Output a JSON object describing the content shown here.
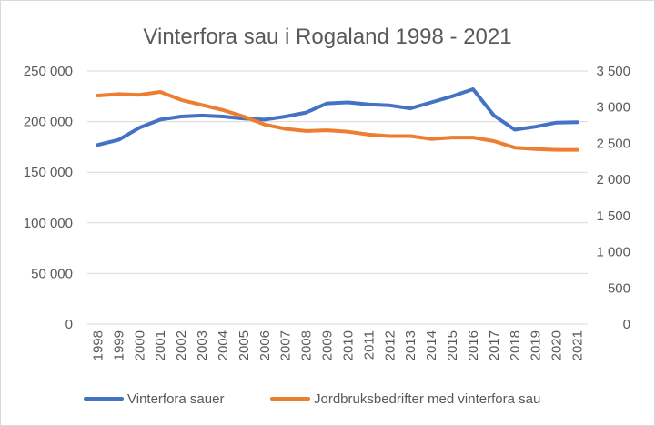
{
  "chart_data": {
    "type": "line",
    "title": "Vinterfora sau i Rogaland 1998 - 2021",
    "categories": [
      "1998",
      "1999",
      "2000",
      "2001",
      "2002",
      "2003",
      "2004",
      "2005",
      "2006",
      "2007",
      "2008",
      "2009",
      "2010",
      "2011",
      "2012",
      "2013",
      "2014",
      "2015",
      "2016",
      "2017",
      "2018",
      "2019",
      "2020",
      "2021"
    ],
    "y_left": {
      "ylim": [
        0,
        250000
      ],
      "ticks": [
        0,
        50000,
        100000,
        150000,
        200000,
        250000
      ],
      "tick_labels": [
        "0",
        "50 000",
        "100 000",
        "150 000",
        "200 000",
        "250 000"
      ]
    },
    "y_right": {
      "ylim": [
        0,
        3500
      ],
      "ticks": [
        0,
        500,
        1000,
        1500,
        2000,
        2500,
        3000,
        3500
      ],
      "tick_labels": [
        "0",
        "500",
        "1 000",
        "1 500",
        "2 000",
        "2 500",
        "3 000",
        "3 500"
      ]
    },
    "series": [
      {
        "name": "Vinterfora sauer",
        "axis": "left",
        "color": "#4472c4",
        "values": [
          177000,
          182000,
          194000,
          202000,
          205000,
          206000,
          205000,
          203000,
          202000,
          205000,
          209000,
          218000,
          219000,
          217000,
          216000,
          213000,
          219000,
          225000,
          232000,
          206000,
          192000,
          195000,
          199000,
          199500
        ]
      },
      {
        "name": "Jordbruksbedrifter med vinterfora sau",
        "axis": "right",
        "color": "#ed7d31",
        "values": [
          3160,
          3180,
          3170,
          3210,
          3100,
          3030,
          2960,
          2870,
          2760,
          2700,
          2670,
          2680,
          2660,
          2620,
          2600,
          2600,
          2560,
          2580,
          2580,
          2530,
          2440,
          2420,
          2410,
          2410
        ]
      }
    ],
    "grid": "horizontal",
    "legend_position": "bottom"
  }
}
